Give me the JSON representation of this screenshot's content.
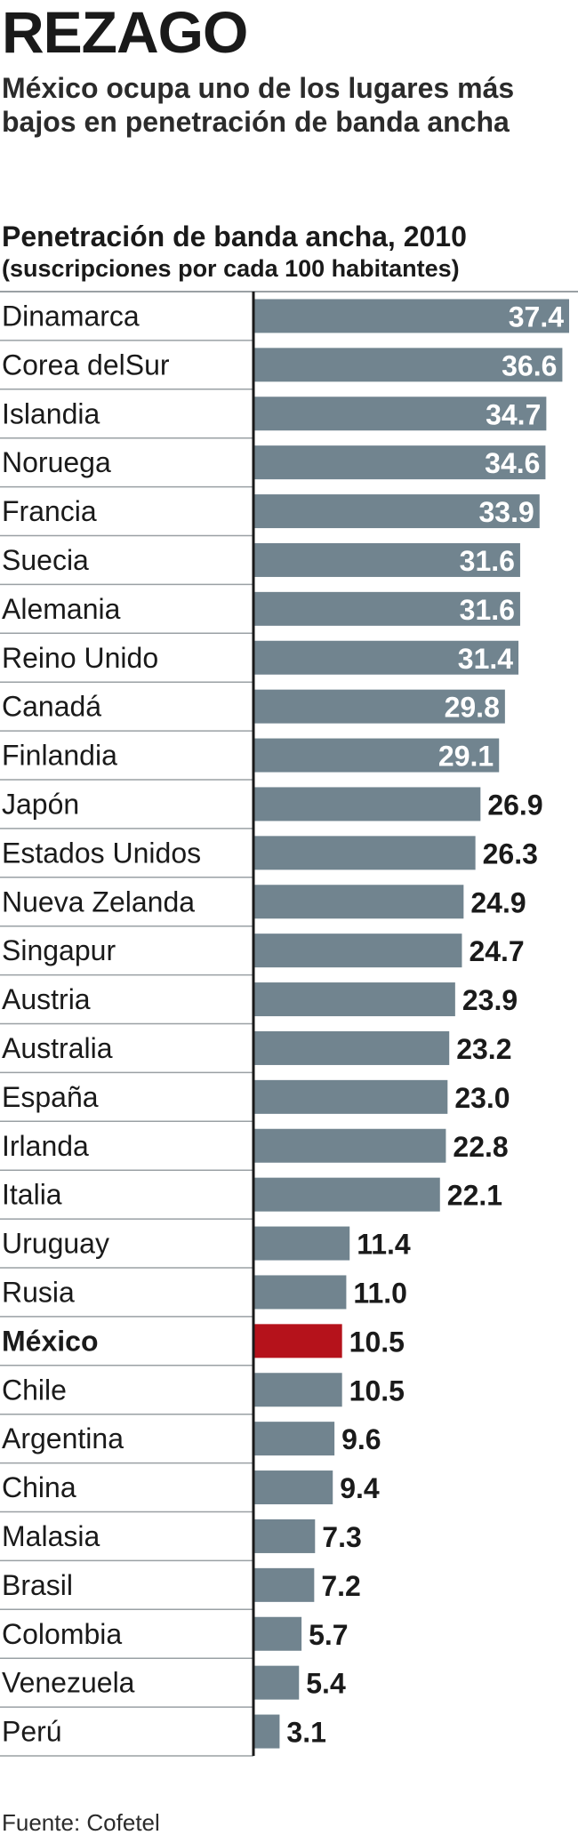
{
  "header": {
    "title": "REZAGO",
    "subtitle": "México ocupa uno de los lugares más bajos en penetración de banda ancha"
  },
  "footer": {
    "source": "Fuente: Cofetel"
  },
  "colors": {
    "bar": "#71848f",
    "highlight": "#b5121b",
    "grid": "#9aa0a4",
    "axis": "#1a1a1a",
    "label_inside": "#ffffff",
    "label_outside": "#1a1a1a"
  },
  "chart_data": {
    "type": "bar",
    "orientation": "horizontal",
    "title": "Penetración de banda ancha, 2010",
    "subtitle": "(suscripciones por cada 100 habitantes)",
    "xlim": [
      0,
      37.4
    ],
    "grid": true,
    "highlight_category": "México",
    "categories": [
      "Dinamarca",
      "Corea delSur",
      "Islandia",
      "Noruega",
      "Francia",
      "Suecia",
      "Alemania",
      "Reino Unido",
      "Canadá",
      "Finlandia",
      "Japón",
      "Estados Unidos",
      "Nueva Zelanda",
      "Singapur",
      "Austria",
      "Australia",
      "España",
      "Irlanda",
      "Italia",
      "Uruguay",
      "Rusia",
      "México",
      "Chile",
      "Argentina",
      "China",
      "Malasia",
      "Brasil",
      "Colombia",
      "Venezuela",
      "Perú"
    ],
    "values": [
      37.4,
      36.6,
      34.7,
      34.6,
      33.9,
      31.6,
      31.6,
      31.4,
      29.8,
      29.1,
      26.9,
      26.3,
      24.9,
      24.7,
      23.9,
      23.2,
      23.0,
      22.8,
      22.1,
      11.4,
      11.0,
      10.5,
      10.5,
      9.6,
      9.4,
      7.3,
      7.2,
      5.7,
      5.4,
      3.1
    ],
    "data_labels": [
      "37.4",
      "36.6",
      "34.7",
      "34.6",
      "33.9",
      "31.6",
      "31.6",
      "31.4",
      "29.8",
      "29.1",
      "26.9",
      "26.3",
      "24.9",
      "24.7",
      "23.9",
      "23.2",
      "23.0",
      "22.8",
      "22.1",
      "11.4",
      "11.0",
      "10.5",
      "10.5",
      "9.6",
      "9.4",
      "7.3",
      "7.2",
      "5.7",
      "5.4",
      "3.1"
    ]
  }
}
